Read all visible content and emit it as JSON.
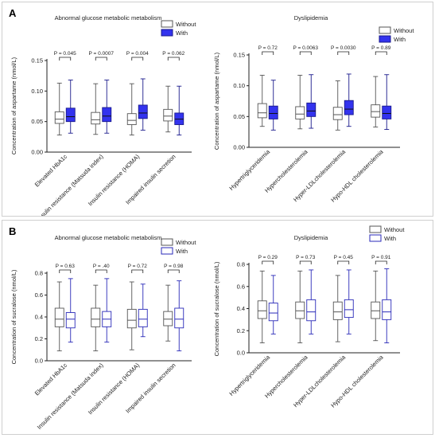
{
  "chart_data": [
    {
      "panel": "A",
      "type": "box",
      "title": "Abnormal glucose metabolic metabolism",
      "ylabel": "Concentration of aspartame (nmol/L)",
      "ylim": [
        0,
        0.15
      ],
      "yticks": [
        "0.00",
        "0.05",
        "0.10",
        "0.15"
      ],
      "categories": [
        "Elevated HbA1c",
        "Insulin resistance (Matsuda index)",
        "Insulin resistance (HOMA)",
        "Impaired insulin secretion"
      ],
      "legend": [
        "Without",
        "With"
      ],
      "pvalues": [
        "P = 0.045",
        "P = 0.0007",
        "P = 0.004",
        "P = 0.062"
      ],
      "series": [
        {
          "name": "Without",
          "color": "#ffffff",
          "stroke": "#555555",
          "boxes": [
            {
              "min": 0.028,
              "q1": 0.047,
              "median": 0.054,
              "q3": 0.066,
              "max": 0.113
            },
            {
              "min": 0.029,
              "q1": 0.046,
              "median": 0.053,
              "q3": 0.065,
              "max": 0.112
            },
            {
              "min": 0.028,
              "q1": 0.045,
              "median": 0.052,
              "q3": 0.063,
              "max": 0.112
            },
            {
              "min": 0.033,
              "q1": 0.051,
              "median": 0.059,
              "q3": 0.07,
              "max": 0.108
            }
          ]
        },
        {
          "name": "With",
          "color": "#3333ee",
          "stroke": "#1a1a8c",
          "boxes": [
            {
              "min": 0.031,
              "q1": 0.05,
              "median": 0.058,
              "q3": 0.072,
              "max": 0.118
            },
            {
              "min": 0.031,
              "q1": 0.05,
              "median": 0.059,
              "q3": 0.073,
              "max": 0.118
            },
            {
              "min": 0.036,
              "q1": 0.055,
              "median": 0.064,
              "q3": 0.077,
              "max": 0.12
            },
            {
              "min": 0.028,
              "q1": 0.045,
              "median": 0.054,
              "q3": 0.064,
              "max": 0.108
            }
          ]
        }
      ]
    },
    {
      "panel": "A",
      "type": "box",
      "title": "Dyslipidemia",
      "ylabel": "Concentration of aspartame (nmol/L)",
      "ylim": [
        0,
        0.15
      ],
      "yticks": [
        "0.00",
        "0.05",
        "0.10",
        "0.15"
      ],
      "categories": [
        "Hypertriglyceridemia",
        "Hypercholesterolemia",
        "Hyper-LDLcholesterolemia",
        "Hypo-HDL cholesterolemia"
      ],
      "legend": [
        "Without",
        "With"
      ],
      "pvalues": [
        "P = 0.72",
        "P = 0.0063",
        "P = 0.0030",
        "P = 0.89"
      ],
      "series": [
        {
          "name": "Without",
          "color": "#ffffff",
          "stroke": "#555555",
          "boxes": [
            {
              "min": 0.034,
              "q1": 0.048,
              "median": 0.056,
              "q3": 0.071,
              "max": 0.117
            },
            {
              "min": 0.03,
              "q1": 0.046,
              "median": 0.054,
              "q3": 0.066,
              "max": 0.117
            },
            {
              "min": 0.028,
              "q1": 0.045,
              "median": 0.053,
              "q3": 0.065,
              "max": 0.108
            },
            {
              "min": 0.033,
              "q1": 0.049,
              "median": 0.058,
              "q3": 0.069,
              "max": 0.115
            }
          ]
        },
        {
          "name": "With",
          "color": "#3333ee",
          "stroke": "#1a1a8c",
          "boxes": [
            {
              "min": 0.028,
              "q1": 0.046,
              "median": 0.055,
              "q3": 0.067,
              "max": 0.109
            },
            {
              "min": 0.031,
              "q1": 0.05,
              "median": 0.059,
              "q3": 0.072,
              "max": 0.118
            },
            {
              "min": 0.034,
              "q1": 0.053,
              "median": 0.062,
              "q3": 0.076,
              "max": 0.119
            },
            {
              "min": 0.029,
              "q1": 0.046,
              "median": 0.055,
              "q3": 0.067,
              "max": 0.118
            }
          ]
        }
      ]
    },
    {
      "panel": "B",
      "type": "box",
      "title": "Abnormal glucose metabolic metabolism",
      "ylabel": "Concentration of sucralose (nmol/L)",
      "ylim": [
        0,
        0.8
      ],
      "yticks": [
        "0.0",
        "0.2",
        "0.4",
        "0.6",
        "0.8"
      ],
      "categories": [
        "Elevated HbA1c",
        "Insulin resistance (Matsuda index)",
        "Insulin resistance (HOMA)",
        "Impaired insulin secretion"
      ],
      "legend": [
        "Without",
        "With"
      ],
      "pvalues": [
        "P = 0.63",
        "P = .40",
        "P = 0.72",
        "P = 0.98"
      ],
      "series": [
        {
          "name": "Without",
          "color": "#ffffff",
          "stroke": "#555555",
          "boxes": [
            {
              "min": 0.09,
              "q1": 0.31,
              "median": 0.38,
              "q3": 0.48,
              "max": 0.72
            },
            {
              "min": 0.09,
              "q1": 0.31,
              "median": 0.38,
              "q3": 0.48,
              "max": 0.69
            },
            {
              "min": 0.1,
              "q1": 0.3,
              "median": 0.37,
              "q3": 0.47,
              "max": 0.72
            },
            {
              "min": 0.18,
              "q1": 0.32,
              "median": 0.38,
              "q3": 0.45,
              "max": 0.69
            }
          ]
        },
        {
          "name": "With",
          "color": "#ffffff",
          "stroke": "#2a2ab8",
          "boxes": [
            {
              "min": 0.17,
              "q1": 0.3,
              "median": 0.38,
              "q3": 0.44,
              "max": 0.75
            },
            {
              "min": 0.17,
              "q1": 0.31,
              "median": 0.38,
              "q3": 0.45,
              "max": 0.75
            },
            {
              "min": 0.22,
              "q1": 0.31,
              "median": 0.38,
              "q3": 0.47,
              "max": 0.7
            },
            {
              "min": 0.09,
              "q1": 0.3,
              "median": 0.38,
              "q3": 0.48,
              "max": 0.73
            }
          ]
        }
      ]
    },
    {
      "panel": "B",
      "type": "box",
      "title": "Dyslipidemia",
      "ylabel": "Concentration of sucralose (nmol/L)",
      "ylim": [
        0,
        0.8
      ],
      "yticks": [
        "0.0",
        "0.2",
        "0.4",
        "0.6",
        "0.8"
      ],
      "categories": [
        "Hypertriglyceridemia",
        "Hypercholesterolemia",
        "Hyper-LDLcholesterolemia",
        "Hypo-HDL cholesterolemia"
      ],
      "legend": [
        "Without",
        "With"
      ],
      "pvalues": [
        "P = 0.29",
        "P = 0.73",
        "P = 0.45",
        "P = 0.91"
      ],
      "series": [
        {
          "name": "Without",
          "color": "#ffffff",
          "stroke": "#555555",
          "boxes": [
            {
              "min": 0.09,
              "q1": 0.31,
              "median": 0.38,
              "q3": 0.47,
              "max": 0.74
            },
            {
              "min": 0.09,
              "q1": 0.31,
              "median": 0.38,
              "q3": 0.46,
              "max": 0.74
            },
            {
              "min": 0.1,
              "q1": 0.3,
              "median": 0.37,
              "q3": 0.46,
              "max": 0.7
            },
            {
              "min": 0.11,
              "q1": 0.31,
              "median": 0.38,
              "q3": 0.46,
              "max": 0.74
            }
          ]
        },
        {
          "name": "With",
          "color": "#ffffff",
          "stroke": "#2a2ab8",
          "boxes": [
            {
              "min": 0.17,
              "q1": 0.29,
              "median": 0.36,
              "q3": 0.45,
              "max": 0.7
            },
            {
              "min": 0.17,
              "q1": 0.29,
              "median": 0.37,
              "q3": 0.48,
              "max": 0.75
            },
            {
              "min": 0.17,
              "q1": 0.32,
              "median": 0.39,
              "q3": 0.48,
              "max": 0.75
            },
            {
              "min": 0.09,
              "q1": 0.3,
              "median": 0.37,
              "q3": 0.48,
              "max": 0.76
            }
          ]
        }
      ]
    }
  ],
  "panels": {
    "A": "A",
    "B": "B"
  }
}
